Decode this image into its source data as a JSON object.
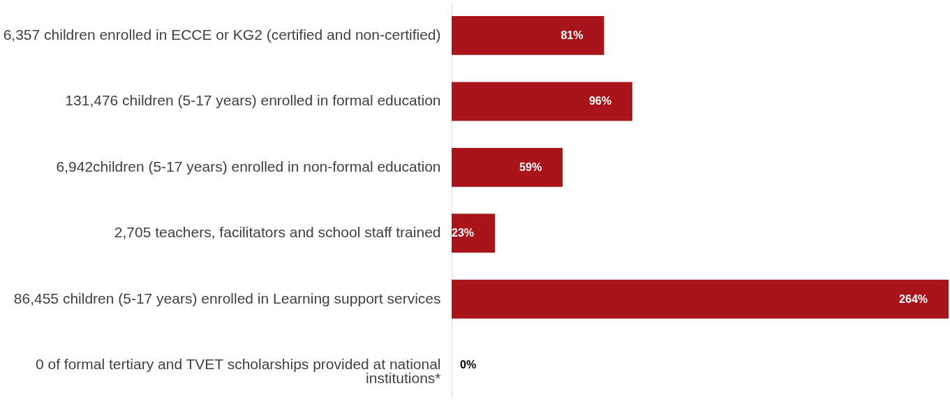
{
  "chart_data": {
    "type": "bar",
    "orientation": "horizontal",
    "color": "#a81419",
    "categories": [
      "6,357 children enrolled in ECCE or KG2 (certified and non-certified)",
      "131,476 children (5-17 years) enrolled in formal education",
      "6,942children (5-17 years) enrolled in non-formal education",
      "2,705 teachers, facilitators and school staff trained",
      "86,455 children (5-17 years) enrolled in Learning support services",
      "0 of formal tertiary and TVET scholarships provided at national institutions*"
    ],
    "values": [
      81,
      96,
      59,
      23,
      264,
      0
    ],
    "value_labels": [
      "81%",
      "96%",
      "59%",
      "23%",
      "264%",
      "0%"
    ]
  }
}
